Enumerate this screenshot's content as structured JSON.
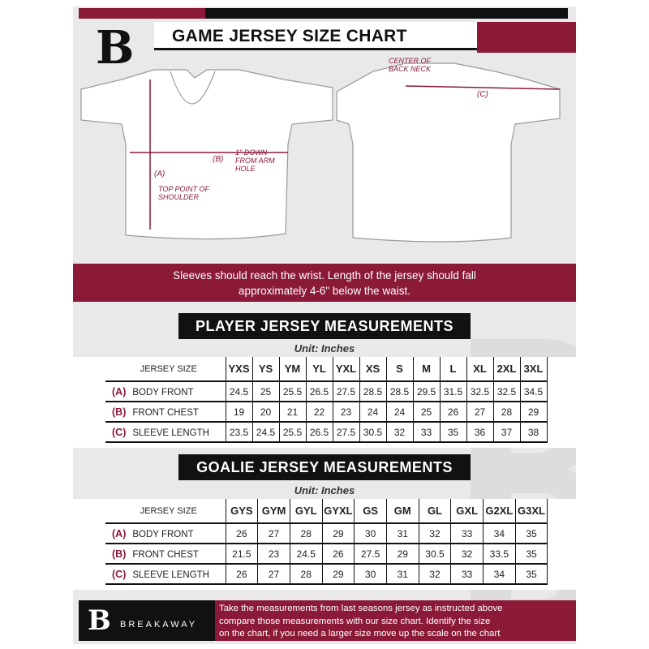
{
  "header": {
    "title": "GAME JERSEY SIZE CHART",
    "logo": "B",
    "accent": "#8a1a38"
  },
  "diagram": {
    "center_back_neck": "CENTER OF BACK NECK",
    "label_a": "(A)",
    "label_b": "(B)",
    "label_c": "(C)",
    "top_point": "TOP POINT OF SHOULDER",
    "one_inch": "1\" DOWN FROM ARM HOLE"
  },
  "banner": {
    "line1": "Sleeves should reach the wrist. Length of the jersey should fall",
    "line2": "approximately 4-6\" below the waist."
  },
  "player": {
    "title": "PLAYER JERSEY MEASUREMENTS",
    "unit": "Unit: Inches",
    "size_label": "JERSEY SIZE",
    "sizes": [
      "YXS",
      "YS",
      "YM",
      "YL",
      "YXL",
      "XS",
      "S",
      "M",
      "L",
      "XL",
      "2XL",
      "3XL"
    ],
    "rows": [
      {
        "letter": "(A)",
        "name": "BODY FRONT",
        "values": [
          "24.5",
          "25",
          "25.5",
          "26.5",
          "27.5",
          "28.5",
          "28.5",
          "29.5",
          "31.5",
          "32.5",
          "32.5",
          "34.5"
        ]
      },
      {
        "letter": "(B)",
        "name": "FRONT CHEST",
        "values": [
          "19",
          "20",
          "21",
          "22",
          "23",
          "24",
          "24",
          "25",
          "26",
          "27",
          "28",
          "29"
        ]
      },
      {
        "letter": "(C)",
        "name": "SLEEVE LENGTH",
        "values": [
          "23.5",
          "24.5",
          "25.5",
          "26.5",
          "27.5",
          "30.5",
          "32",
          "33",
          "35",
          "36",
          "37",
          "38"
        ]
      }
    ]
  },
  "goalie": {
    "title": "GOALIE JERSEY MEASUREMENTS",
    "unit": "Unit: Inches",
    "size_label": "JERSEY SIZE",
    "sizes": [
      "GYS",
      "GYM",
      "GYL",
      "GYXL",
      "GS",
      "GM",
      "GL",
      "GXL",
      "G2XL",
      "G3XL"
    ],
    "rows": [
      {
        "letter": "(A)",
        "name": "BODY FRONT",
        "values": [
          "26",
          "27",
          "28",
          "29",
          "30",
          "31",
          "32",
          "33",
          "34",
          "35"
        ]
      },
      {
        "letter": "(B)",
        "name": "FRONT CHEST",
        "values": [
          "21.5",
          "23",
          "24.5",
          "26",
          "27.5",
          "29",
          "30.5",
          "32",
          "33.5",
          "35"
        ]
      },
      {
        "letter": "(C)",
        "name": "SLEEVE LENGTH",
        "values": [
          "26",
          "27",
          "28",
          "29",
          "30",
          "31",
          "32",
          "33",
          "34",
          "35"
        ]
      }
    ]
  },
  "footer": {
    "brand": "BREAKAWAY",
    "logo": "B",
    "text1": "Take the measurements from last seasons jersey as instructed above",
    "text2": "compare those measurements  with our size chart. Identify the size",
    "text3": "on the chart, if you need a larger size move up the scale on the chart"
  }
}
